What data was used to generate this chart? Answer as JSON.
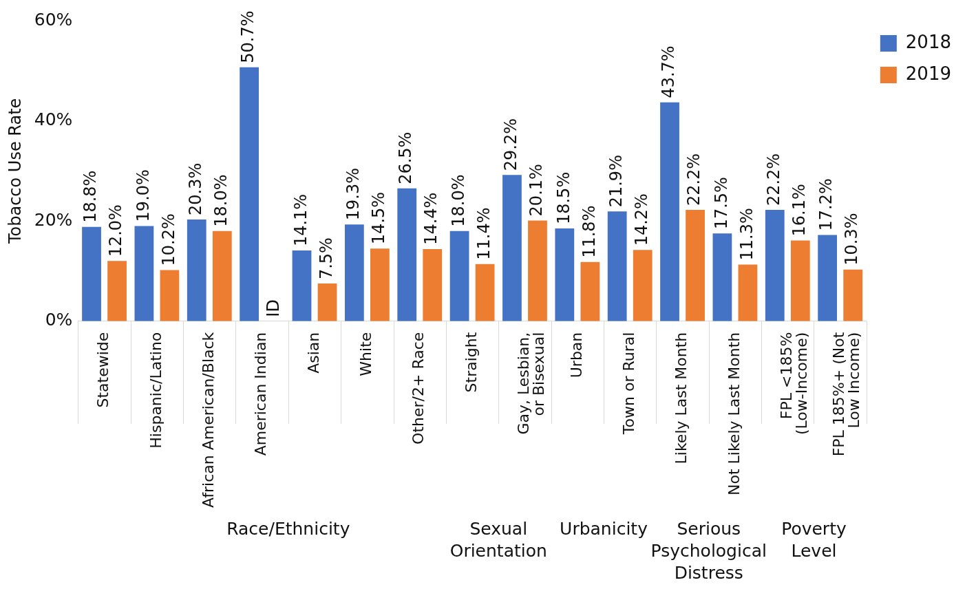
{
  "chart_data": {
    "type": "bar",
    "categories": [
      "Statewide",
      "Hispanic/Latino",
      "African American/Black",
      "American Indian",
      "Asian",
      "White",
      "Other/2+ Race",
      "Straight",
      "Gay, Lesbian, or Bisexual",
      "Urban",
      "Town or Rural",
      "Likely Last Month",
      "Not Likely Last Month",
      "FPL <185% (Low-Income)",
      "FPL 185%+ (Not Low Income)"
    ],
    "ylabel": "Tobacco Use Rate",
    "ylim": [
      0,
      60
    ],
    "yticks": [
      {
        "value": 0,
        "label": "0%"
      },
      {
        "value": 20,
        "label": "20%"
      },
      {
        "value": 40,
        "label": "40%"
      },
      {
        "value": 60,
        "label": "60%"
      }
    ],
    "series": [
      {
        "name": "2018",
        "color": "#4472c4",
        "values": [
          18.8,
          19.0,
          20.3,
          50.7,
          14.1,
          19.3,
          26.5,
          18.0,
          29.2,
          18.5,
          21.9,
          43.7,
          17.5,
          22.2,
          17.2
        ],
        "value_labels": [
          "18.8%",
          "19.0%",
          "20.3%",
          "50.7%",
          "14.1%",
          "19.3%",
          "26.5%",
          "18.0%",
          "29.2%",
          "18.5%",
          "21.9%",
          "43.7%",
          "17.5%",
          "22.2%",
          "17.2%"
        ]
      },
      {
        "name": "2019",
        "color": "#ed7d31",
        "values": [
          12.0,
          10.2,
          18.0,
          null,
          7.5,
          14.5,
          14.4,
          11.4,
          20.1,
          11.8,
          14.2,
          22.2,
          11.3,
          16.1,
          10.3
        ],
        "value_labels": [
          "12.0%",
          "10.2%",
          "18.0%",
          "ID",
          "7.5%",
          "14.5%",
          "14.4%",
          "11.4%",
          "20.1%",
          "11.8%",
          "14.2%",
          "22.2%",
          "11.3%",
          "16.1%",
          "10.3%"
        ]
      }
    ],
    "annotations": [
      "Race/Ethnicity",
      "Sexual Orientation",
      "Urbanicity",
      "Serious Psychological Distress",
      "Poverty Level"
    ],
    "legend": "top right",
    "grid": false
  }
}
